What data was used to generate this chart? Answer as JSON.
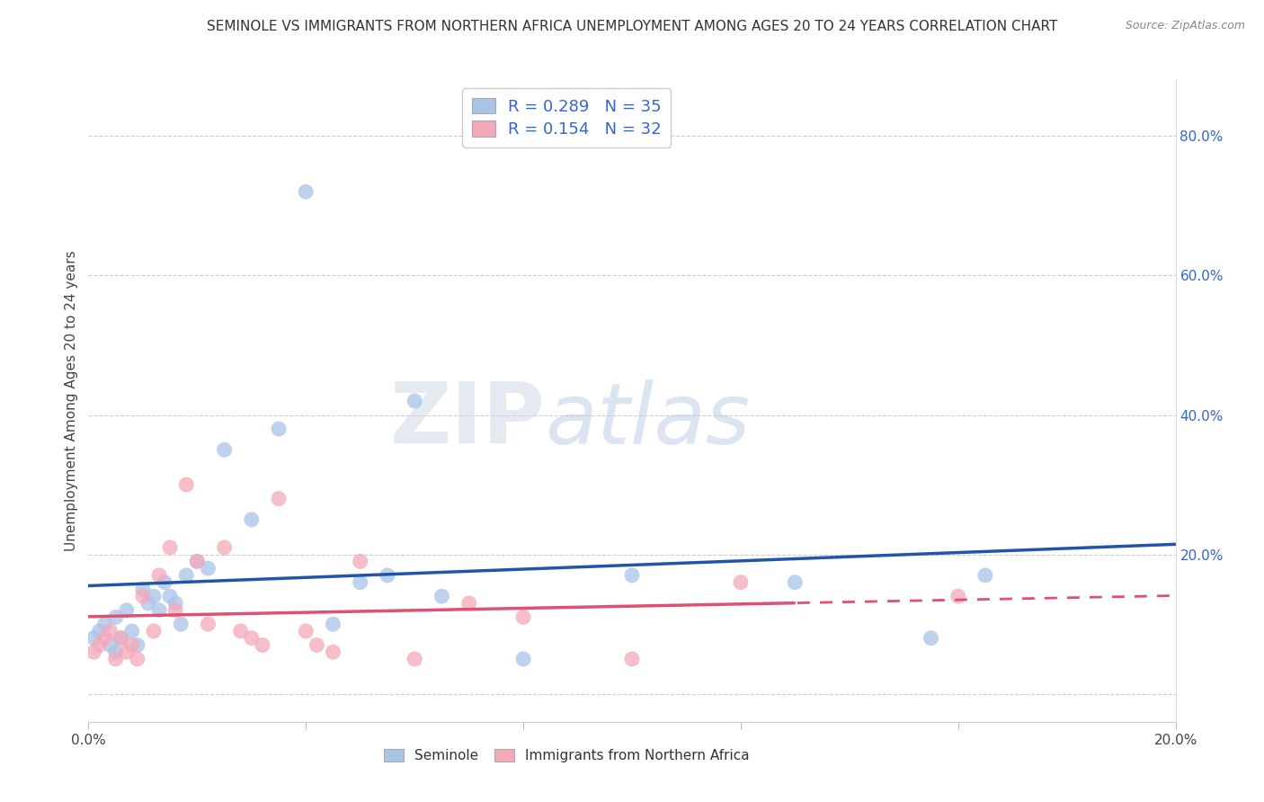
{
  "title": "SEMINOLE VS IMMIGRANTS FROM NORTHERN AFRICA UNEMPLOYMENT AMONG AGES 20 TO 24 YEARS CORRELATION CHART",
  "source": "Source: ZipAtlas.com",
  "ylabel": "Unemployment Among Ages 20 to 24 years",
  "x_min": 0.0,
  "x_max": 0.2,
  "y_min": -0.04,
  "y_max": 0.88,
  "x_ticks": [
    0.0,
    0.04,
    0.08,
    0.12,
    0.16,
    0.2
  ],
  "y_ticks_right": [
    0.0,
    0.2,
    0.4,
    0.6,
    0.8
  ],
  "y_tick_labels_right": [
    "",
    "20.0%",
    "40.0%",
    "60.0%",
    "80.0%"
  ],
  "seminole_label": "Seminole",
  "immigrants_label": "Immigrants from Northern Africa",
  "blue_color": "#aac4e8",
  "pink_color": "#f4a8b8",
  "blue_line_color": "#2255AA",
  "pink_line_color": "#e05070",
  "watermark_zip": "ZIP",
  "watermark_atlas": "atlas",
  "blue_R": 0.289,
  "blue_N": 35,
  "pink_R": 0.154,
  "pink_N": 32,
  "seminole_x": [
    0.001,
    0.002,
    0.003,
    0.004,
    0.005,
    0.005,
    0.006,
    0.007,
    0.008,
    0.009,
    0.01,
    0.011,
    0.012,
    0.013,
    0.014,
    0.015,
    0.016,
    0.017,
    0.018,
    0.02,
    0.022,
    0.025,
    0.03,
    0.035,
    0.04,
    0.045,
    0.05,
    0.055,
    0.06,
    0.065,
    0.08,
    0.1,
    0.13,
    0.155,
    0.165
  ],
  "seminole_y": [
    0.08,
    0.09,
    0.1,
    0.07,
    0.06,
    0.11,
    0.08,
    0.12,
    0.09,
    0.07,
    0.15,
    0.13,
    0.14,
    0.12,
    0.16,
    0.14,
    0.13,
    0.1,
    0.17,
    0.19,
    0.18,
    0.35,
    0.25,
    0.38,
    0.72,
    0.1,
    0.16,
    0.17,
    0.42,
    0.14,
    0.05,
    0.17,
    0.16,
    0.08,
    0.17
  ],
  "immigrants_x": [
    0.001,
    0.002,
    0.003,
    0.004,
    0.005,
    0.006,
    0.007,
    0.008,
    0.009,
    0.01,
    0.012,
    0.013,
    0.015,
    0.016,
    0.018,
    0.02,
    0.022,
    0.025,
    0.028,
    0.03,
    0.032,
    0.035,
    0.04,
    0.042,
    0.045,
    0.05,
    0.06,
    0.07,
    0.08,
    0.1,
    0.12,
    0.16
  ],
  "immigrants_y": [
    0.06,
    0.07,
    0.08,
    0.09,
    0.05,
    0.08,
    0.06,
    0.07,
    0.05,
    0.14,
    0.09,
    0.17,
    0.21,
    0.12,
    0.3,
    0.19,
    0.1,
    0.21,
    0.09,
    0.08,
    0.07,
    0.28,
    0.09,
    0.07,
    0.06,
    0.19,
    0.05,
    0.13,
    0.11,
    0.05,
    0.16,
    0.14
  ]
}
